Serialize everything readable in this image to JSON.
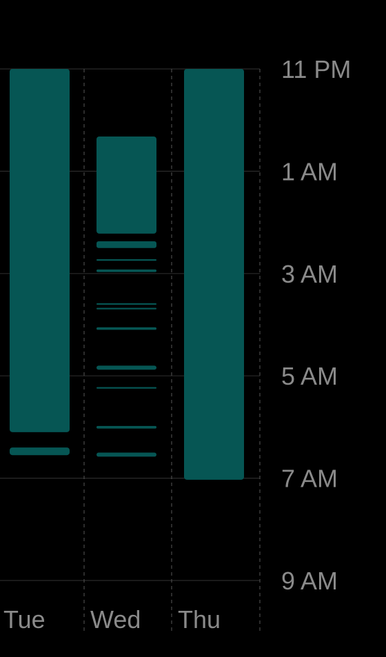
{
  "chart_data": {
    "type": "bar",
    "orientation": "vertical-ranges",
    "color": "#065654",
    "y_axis_side": "right",
    "y_ticks": [
      {
        "label": "11 PM",
        "hour": 23
      },
      {
        "label": "1 AM",
        "hour": 25
      },
      {
        "label": "3 AM",
        "hour": 27
      },
      {
        "label": "5 AM",
        "hour": 29
      },
      {
        "label": "7 AM",
        "hour": 31
      },
      {
        "label": "9 AM",
        "hour": 33
      }
    ],
    "ylim": [
      23,
      33
    ],
    "grid": true,
    "categories": [
      "Tue",
      "Wed",
      "Thu"
    ],
    "series": [
      {
        "category": "Tue",
        "segments": [
          {
            "start": 23.0,
            "end": 30.1
          },
          {
            "start": 30.4,
            "end": 30.55
          }
        ]
      },
      {
        "category": "Wed",
        "segments": [
          {
            "start": 24.32,
            "end": 26.22
          },
          {
            "start": 26.37,
            "end": 26.5
          },
          {
            "start": 26.72,
            "end": 26.75
          },
          {
            "start": 26.92,
            "end": 26.97
          },
          {
            "start": 27.58,
            "end": 27.61
          },
          {
            "start": 27.67,
            "end": 27.7
          },
          {
            "start": 28.05,
            "end": 28.1
          },
          {
            "start": 28.8,
            "end": 28.88
          },
          {
            "start": 29.22,
            "end": 29.25
          },
          {
            "start": 29.98,
            "end": 30.03
          },
          {
            "start": 30.5,
            "end": 30.58
          }
        ]
      },
      {
        "category": "Thu",
        "segments": [
          {
            "start": 23.0,
            "end": 31.03
          }
        ]
      }
    ]
  }
}
